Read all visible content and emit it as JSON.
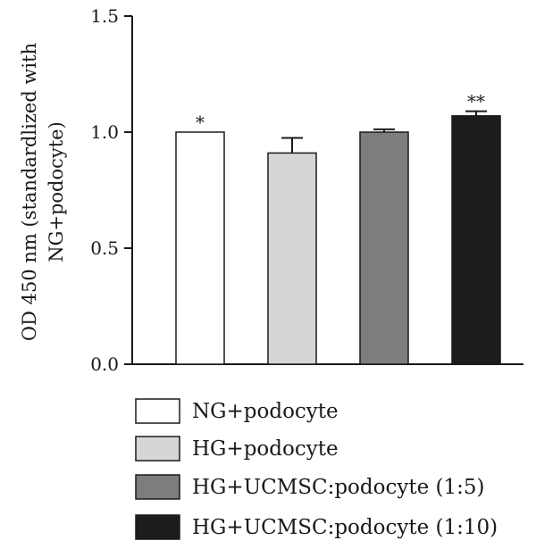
{
  "chart_data": {
    "type": "bar",
    "title": "",
    "xlabel": "",
    "ylabel_lines": [
      "OD 450 nm (standardlized with",
      "NG+podocyte)"
    ],
    "ylim": [
      0,
      1.5
    ],
    "yticks": [
      "0.0",
      "0.5",
      "1.0",
      "1.5"
    ],
    "ytick_values": [
      0,
      0.5,
      1.0,
      1.5
    ],
    "grid": false,
    "legend_position": "bottom",
    "categories": [
      "NG+podocyte",
      "HG+podocyte",
      "HG+UCMSC:podocyte (1:5)",
      "HG+UCMSC:podocyte (1:10)"
    ],
    "values": [
      1.0,
      0.91,
      1.0,
      1.07
    ],
    "errors": [
      0.0,
      0.065,
      0.012,
      0.02
    ],
    "significance": [
      "*",
      "",
      "",
      "**"
    ],
    "colors": [
      "#ffffff",
      "#d6d6d6",
      "#7d7d7d",
      "#1c1c1c"
    ]
  }
}
